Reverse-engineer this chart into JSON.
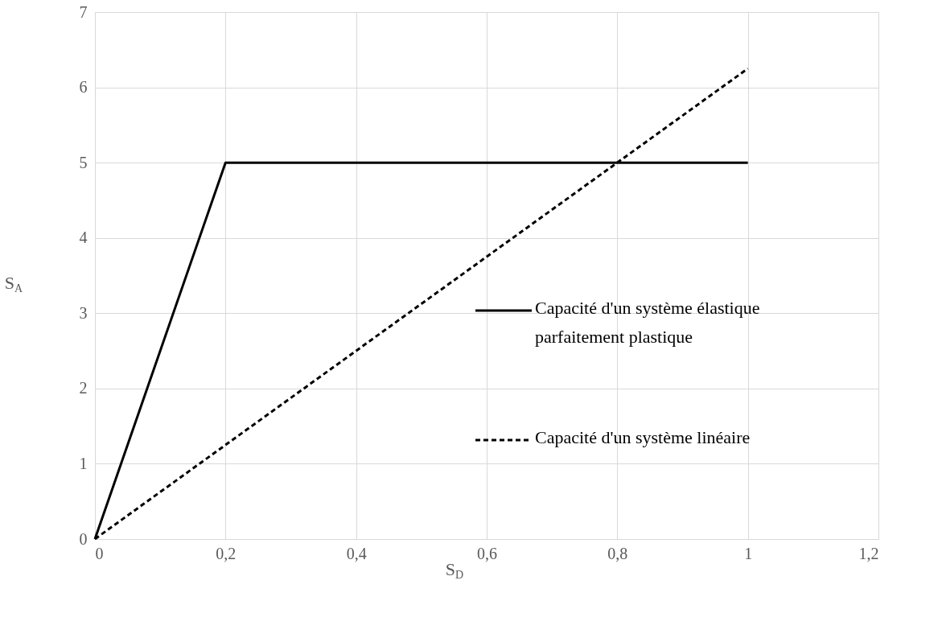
{
  "chart_data": {
    "type": "line",
    "xlabel": "S$_{D}$",
    "ylabel": "S$_{A}$",
    "xlim": [
      0,
      1.2
    ],
    "ylim": [
      0,
      7
    ],
    "xticks": [
      0,
      {
        "value": 0.2,
        "label": "0,2"
      },
      {
        "value": 0.4,
        "label": "0,4"
      },
      {
        "value": 0.6,
        "label": "0,6"
      },
      {
        "value": 0.8,
        "label": "0,8"
      },
      1,
      {
        "value": 1.2,
        "label": "1,2"
      }
    ],
    "yticks": [
      0,
      1,
      2,
      3,
      4,
      5,
      6,
      7
    ],
    "grid": true,
    "legend": "right",
    "marker": "none",
    "series": [
      {
        "name": "Capacité d'un système élastique parfaitement plastique",
        "color": "#000000",
        "line_style": "solid",
        "x": [
          0,
          0.2,
          1
        ],
        "values": [
          0,
          5,
          5
        ]
      },
      {
        "name": "Capacité d'un système linéaire",
        "color": "#000000",
        "line_style": "dashed",
        "x": [
          0,
          1
        ],
        "values": [
          0,
          6.25
        ]
      }
    ]
  }
}
